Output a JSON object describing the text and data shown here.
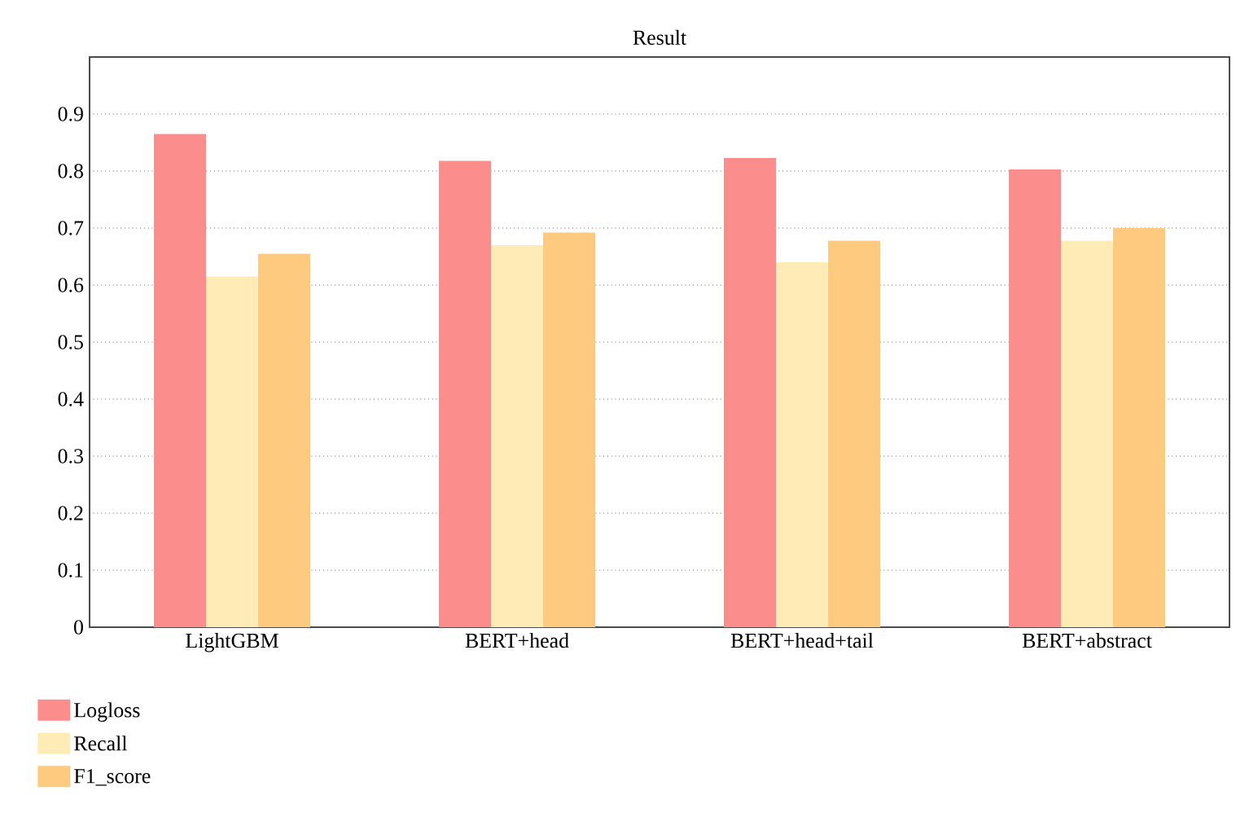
{
  "chart_data": {
    "type": "bar",
    "title": "Result",
    "categories": [
      "LightGBM",
      "BERT+head",
      "BERT+head+tail",
      "BERT+abstract"
    ],
    "series": [
      {
        "name": "Logloss",
        "color": "#fc8d8d",
        "values": [
          0.865,
          0.818,
          0.823,
          0.803
        ]
      },
      {
        "name": "Recall",
        "color": "#feebb5",
        "values": [
          0.615,
          0.67,
          0.64,
          0.678
        ]
      },
      {
        "name": "F1_score",
        "color": "#fdca80",
        "values": [
          0.655,
          0.692,
          0.678,
          0.7
        ]
      }
    ],
    "ylim": [
      0,
      1
    ],
    "yticks": [
      0,
      0.1,
      0.2,
      0.3,
      0.4,
      0.5,
      0.6,
      0.7,
      0.8,
      0.9
    ],
    "grid": "y",
    "legend": "bottom left"
  }
}
